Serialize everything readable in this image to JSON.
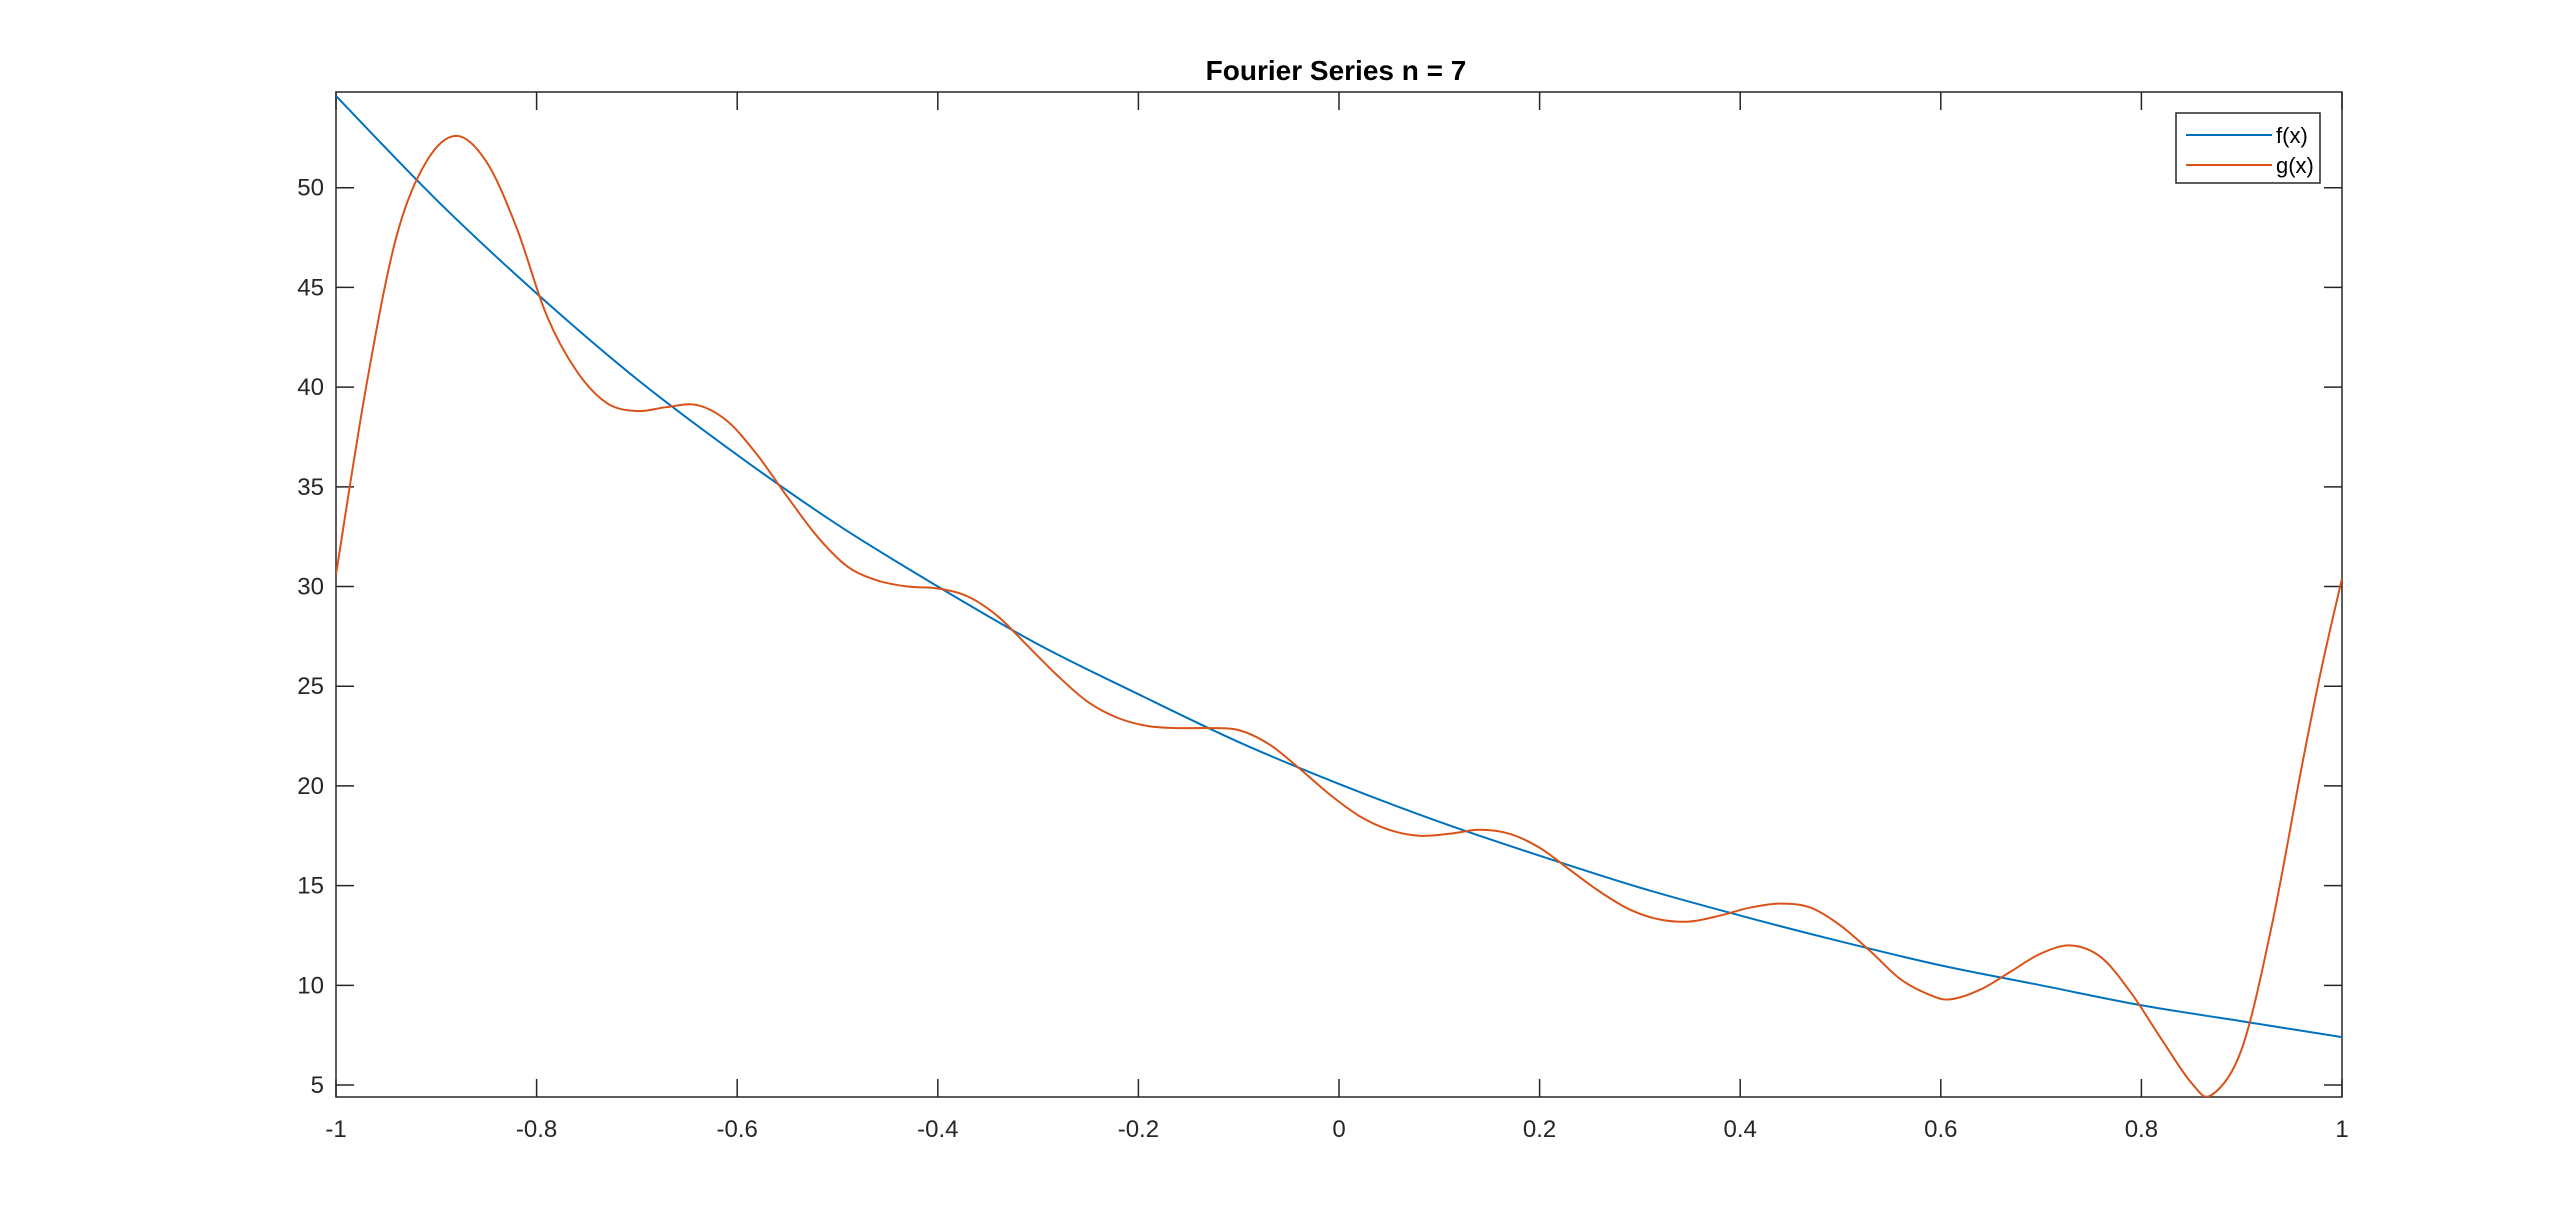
{
  "chart_data": {
    "type": "line",
    "title": "Fourier Series n = 7",
    "xlabel": "",
    "ylabel": "",
    "xlim": [
      -1,
      1
    ],
    "ylim": [
      4.4,
      54.8
    ],
    "grid": false,
    "box": true,
    "legend_position": "top-right",
    "x_ticks": [
      -1,
      -0.8,
      -0.6,
      -0.4,
      -0.2,
      0,
      0.2,
      0.4,
      0.6,
      0.8,
      1
    ],
    "x_tick_labels": [
      "-1",
      "-0.8",
      "-0.6",
      "-0.4",
      "-0.2",
      "0",
      "0.2",
      "0.4",
      "0.6",
      "0.8",
      "1"
    ],
    "y_ticks": [
      5,
      10,
      15,
      20,
      25,
      30,
      35,
      40,
      45,
      50
    ],
    "y_tick_labels": [
      "5",
      "10",
      "15",
      "20",
      "25",
      "30",
      "35",
      "40",
      "45",
      "50"
    ],
    "series": [
      {
        "name": "f(x)",
        "color": "#0072BD",
        "x": [
          -1.0,
          -0.9,
          -0.8,
          -0.7,
          -0.6,
          -0.5,
          -0.4,
          -0.3,
          -0.2,
          -0.1,
          0.0,
          0.1,
          0.2,
          0.3,
          0.4,
          0.5,
          0.6,
          0.7,
          0.8,
          0.9,
          1.0
        ],
        "y": [
          54.6,
          49.4,
          44.7,
          40.4,
          36.6,
          33.1,
          30.0,
          27.1,
          24.6,
          22.2,
          20.1,
          18.2,
          16.5,
          14.9,
          13.5,
          12.2,
          11.0,
          10.0,
          9.0,
          8.2,
          7.4
        ]
      },
      {
        "name": "g(x)",
        "color": "#D95319",
        "x": [
          -1.0,
          -0.97,
          -0.94,
          -0.91,
          -0.88,
          -0.85,
          -0.82,
          -0.79,
          -0.76,
          -0.73,
          -0.7,
          -0.67,
          -0.64,
          -0.61,
          -0.58,
          -0.55,
          -0.52,
          -0.49,
          -0.46,
          -0.43,
          -0.4,
          -0.37,
          -0.34,
          -0.31,
          -0.28,
          -0.25,
          -0.22,
          -0.19,
          -0.16,
          -0.13,
          -0.1,
          -0.07,
          -0.04,
          -0.01,
          0.02,
          0.05,
          0.08,
          0.11,
          0.14,
          0.17,
          0.2,
          0.23,
          0.26,
          0.29,
          0.32,
          0.35,
          0.38,
          0.41,
          0.44,
          0.47,
          0.5,
          0.53,
          0.56,
          0.59,
          0.61,
          0.64,
          0.67,
          0.7,
          0.73,
          0.76,
          0.79,
          0.82,
          0.85,
          0.87,
          0.9,
          0.93,
          0.96,
          0.98,
          1.0
        ],
        "y": [
          30.6,
          40.0,
          47.5,
          51.3,
          52.6,
          51.3,
          48.0,
          43.6,
          40.8,
          39.2,
          38.8,
          39.0,
          39.1,
          38.3,
          36.6,
          34.5,
          32.5,
          31.0,
          30.3,
          30.0,
          29.9,
          29.5,
          28.5,
          27.0,
          25.5,
          24.2,
          23.4,
          23.0,
          22.9,
          22.9,
          22.8,
          22.1,
          20.9,
          19.6,
          18.5,
          17.8,
          17.5,
          17.6,
          17.8,
          17.6,
          16.9,
          15.8,
          14.7,
          13.8,
          13.3,
          13.2,
          13.5,
          13.9,
          14.1,
          13.9,
          13.0,
          11.7,
          10.3,
          9.5,
          9.3,
          9.8,
          10.7,
          11.6,
          12.0,
          11.4,
          9.6,
          7.3,
          5.1,
          4.5,
          6.8,
          13.0,
          21.0,
          26.0,
          30.4
        ]
      }
    ]
  }
}
